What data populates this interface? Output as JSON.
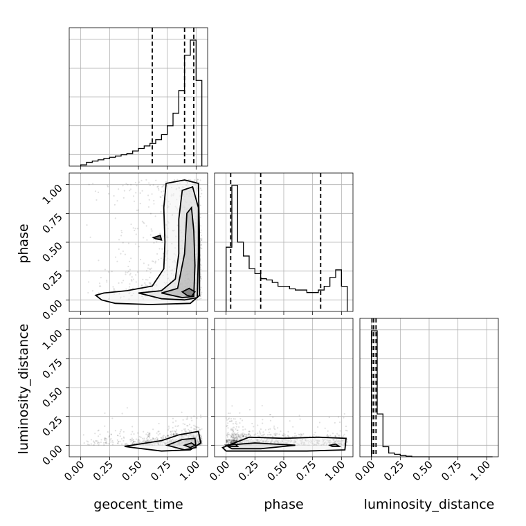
{
  "chart_data": {
    "type": "corner",
    "parameters": [
      "geocent_time",
      "phase",
      "luminosity_distance"
    ],
    "axis_labels": {
      "geocent_time": "geocent_time",
      "phase": "phase",
      "luminosity_distance": "luminosity_distance"
    },
    "ticks": [
      0.0,
      0.25,
      0.5,
      0.75,
      1.0
    ],
    "tick_labels": [
      "0.00",
      "0.25",
      "0.50",
      "0.75",
      "1.00"
    ],
    "grid": true,
    "histograms": [
      {
        "parameter": "geocent_time",
        "bin_edges": [
          0.0,
          0.05,
          0.1,
          0.15,
          0.2,
          0.25,
          0.3,
          0.35,
          0.4,
          0.45,
          0.5,
          0.55,
          0.6,
          0.65,
          0.7,
          0.75,
          0.8,
          0.85,
          0.9,
          0.95,
          1.0,
          1.05
        ],
        "counts": [
          0.01,
          0.03,
          0.04,
          0.05,
          0.06,
          0.07,
          0.08,
          0.09,
          0.1,
          0.12,
          0.14,
          0.16,
          0.18,
          0.21,
          0.25,
          0.32,
          0.42,
          0.6,
          0.88,
          1.0,
          0.68
        ],
        "quantile_lines": [
          0.62,
          0.9,
          0.98
        ]
      },
      {
        "parameter": "phase",
        "bin_edges": [
          0.0,
          0.05,
          0.1,
          0.15,
          0.2,
          0.25,
          0.3,
          0.35,
          0.4,
          0.45,
          0.5,
          0.55,
          0.6,
          0.65,
          0.7,
          0.75,
          0.8,
          0.85,
          0.9,
          0.95,
          1.0,
          1.05
        ],
        "counts": [
          0.51,
          1.0,
          0.55,
          0.44,
          0.34,
          0.3,
          0.26,
          0.25,
          0.23,
          0.2,
          0.2,
          0.18,
          0.17,
          0.17,
          0.15,
          0.15,
          0.17,
          0.2,
          0.27,
          0.33,
          0.2
        ],
        "quantile_lines": [
          0.04,
          0.3,
          0.82
        ]
      },
      {
        "parameter": "luminosity_distance",
        "bin_edges": [
          0.0,
          0.05,
          0.1,
          0.15,
          0.2,
          0.25,
          0.3,
          0.35,
          0.4,
          0.45,
          0.5,
          0.55,
          0.6,
          0.65,
          0.7,
          0.75,
          0.8,
          0.85,
          0.9,
          0.95,
          1.0,
          1.05
        ],
        "counts": [
          1.0,
          0.34,
          0.08,
          0.03,
          0.02,
          0.01,
          0.005,
          0.0,
          0.0,
          0.0,
          0.0,
          0.0,
          0.0,
          0.0,
          0.0,
          0.0,
          0.0,
          0.0,
          0.0,
          0.0,
          0.0
        ],
        "quantile_lines": [
          0.005,
          0.02,
          0.04
        ]
      }
    ],
    "contour_panels": [
      {
        "x": "geocent_time",
        "y": "phase",
        "contours": [
          [
            [
              0.13,
              0.04
            ],
            [
              0.2,
              0.06
            ],
            [
              0.4,
              0.08
            ],
            [
              0.62,
              0.12
            ],
            [
              0.72,
              0.27
            ],
            [
              0.73,
              0.5
            ],
            [
              0.72,
              0.8
            ],
            [
              0.74,
              1.01
            ],
            [
              0.9,
              1.04
            ],
            [
              1.02,
              1.01
            ],
            [
              1.03,
              0.5
            ],
            [
              1.03,
              0.04
            ],
            [
              0.95,
              -0.03
            ],
            [
              0.6,
              -0.04
            ],
            [
              0.3,
              -0.03
            ],
            [
              0.18,
              0.0
            ]
          ],
          [
            [
              0.5,
              0.06
            ],
            [
              0.7,
              0.08
            ],
            [
              0.82,
              0.18
            ],
            [
              0.85,
              0.4
            ],
            [
              0.85,
              0.7
            ],
            [
              0.88,
              0.95
            ],
            [
              0.97,
              0.98
            ],
            [
              1.02,
              0.8
            ],
            [
              1.02,
              0.4
            ],
            [
              1.01,
              0.02
            ],
            [
              0.9,
              0.0
            ],
            [
              0.7,
              0.01
            ]
          ],
          [
            [
              0.7,
              0.06
            ],
            [
              0.84,
              0.1
            ],
            [
              0.9,
              0.4
            ],
            [
              0.92,
              0.75
            ],
            [
              0.96,
              0.8
            ],
            [
              0.98,
              0.6
            ],
            [
              0.99,
              0.3
            ],
            [
              0.98,
              0.03
            ],
            [
              0.88,
              0.02
            ]
          ],
          [
            [
              0.88,
              0.07
            ],
            [
              0.94,
              0.1
            ],
            [
              0.99,
              0.07
            ],
            [
              0.96,
              0.03
            ],
            [
              0.92,
              0.04
            ]
          ],
          [
            [
              0.63,
              0.54
            ],
            [
              0.69,
              0.56
            ],
            [
              0.7,
              0.52
            ],
            [
              0.65,
              0.53
            ]
          ]
        ]
      },
      {
        "x": "geocent_time",
        "y": "luminosity_distance",
        "contours": [
          [
            [
              0.38,
              -0.01
            ],
            [
              0.7,
              0.04
            ],
            [
              0.85,
              0.09
            ],
            [
              1.02,
              0.12
            ],
            [
              1.04,
              0.02
            ],
            [
              0.95,
              -0.04
            ],
            [
              0.7,
              -0.05
            ],
            [
              0.45,
              -0.02
            ]
          ],
          [
            [
              0.75,
              0.0
            ],
            [
              0.88,
              0.05
            ],
            [
              0.99,
              0.06
            ],
            [
              1.0,
              -0.02
            ],
            [
              0.9,
              -0.04
            ]
          ],
          [
            [
              0.9,
              0.0
            ],
            [
              0.96,
              0.02
            ],
            [
              0.99,
              0.0
            ],
            [
              0.95,
              -0.02
            ]
          ]
        ]
      },
      {
        "x": "phase",
        "y": "luminosity_distance",
        "contours": [
          [
            [
              -0.03,
              -0.02
            ],
            [
              0.2,
              0.07
            ],
            [
              0.5,
              0.06
            ],
            [
              0.8,
              0.07
            ],
            [
              1.04,
              0.06
            ],
            [
              1.03,
              -0.04
            ],
            [
              0.7,
              -0.05
            ],
            [
              0.3,
              -0.05
            ],
            [
              0.0,
              -0.05
            ]
          ],
          [
            [
              0.0,
              0.0
            ],
            [
              0.25,
              0.02
            ],
            [
              0.6,
              0.0
            ],
            [
              0.3,
              -0.03
            ],
            [
              0.05,
              -0.03
            ]
          ],
          [
            [
              0.02,
              0.0
            ],
            [
              0.08,
              0.01
            ],
            [
              0.1,
              -0.01
            ],
            [
              0.04,
              -0.01
            ]
          ],
          [
            [
              0.9,
              0.0
            ],
            [
              0.95,
              0.01
            ],
            [
              0.98,
              -0.01
            ],
            [
              0.92,
              -0.01
            ]
          ]
        ]
      }
    ]
  }
}
